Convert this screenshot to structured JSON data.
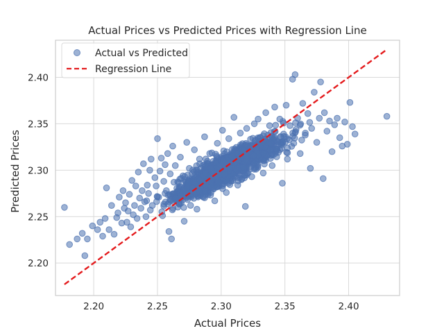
{
  "chart_data": {
    "type": "scatter",
    "title": "Actual Prices vs Predicted Prices with Regression Line",
    "xlabel": "Actual Prices",
    "ylabel": "Predicted Prices",
    "xlim": [
      2.17,
      2.44
    ],
    "ylim": [
      2.165,
      2.44
    ],
    "xticks": [
      2.2,
      2.25,
      2.3,
      2.35,
      2.4
    ],
    "yticks": [
      2.2,
      2.25,
      2.3,
      2.35,
      2.4
    ],
    "xtick_labels": [
      "2.20",
      "2.25",
      "2.30",
      "2.35",
      "2.40"
    ],
    "ytick_labels": [
      "2.20",
      "2.25",
      "2.30",
      "2.35",
      "2.40"
    ],
    "grid": true,
    "legend_position": "top-left",
    "series": [
      {
        "name": "Actual vs Predicted",
        "kind": "scatter",
        "color": "#4c72b0",
        "points": [
          [
            2.177,
            2.26
          ],
          [
            2.181,
            2.22
          ],
          [
            2.187,
            2.226
          ],
          [
            2.191,
            2.232
          ],
          [
            2.193,
            2.208
          ],
          [
            2.195,
            2.226
          ],
          [
            2.199,
            2.24
          ],
          [
            2.203,
            2.236
          ],
          [
            2.205,
            2.244
          ],
          [
            2.207,
            2.229
          ],
          [
            2.209,
            2.248
          ],
          [
            2.21,
            2.281
          ],
          [
            2.212,
            2.236
          ],
          [
            2.214,
            2.262
          ],
          [
            2.216,
            2.231
          ],
          [
            2.218,
            2.249
          ],
          [
            2.219,
            2.254
          ],
          [
            2.22,
            2.271
          ],
          [
            2.222,
            2.243
          ],
          [
            2.223,
            2.278
          ],
          [
            2.224,
            2.259
          ],
          [
            2.225,
            2.265
          ],
          [
            2.226,
            2.244
          ],
          [
            2.227,
            2.256
          ],
          [
            2.228,
            2.274
          ],
          [
            2.229,
            2.239
          ],
          [
            2.23,
            2.289
          ],
          [
            2.231,
            2.252
          ],
          [
            2.232,
            2.262
          ],
          [
            2.233,
            2.283
          ],
          [
            2.234,
            2.248
          ],
          [
            2.235,
            2.298
          ],
          [
            2.236,
            2.27
          ],
          [
            2.237,
            2.259
          ],
          [
            2.238,
            2.278
          ],
          [
            2.239,
            2.307
          ],
          [
            2.24,
            2.266
          ],
          [
            2.241,
            2.25
          ],
          [
            2.242,
            2.284
          ],
          [
            2.243,
            2.275
          ],
          [
            2.244,
            2.3
          ],
          [
            2.245,
            2.312
          ],
          [
            2.246,
            2.262
          ],
          [
            2.248,
            2.292
          ],
          [
            2.249,
            2.283
          ],
          [
            2.25,
            2.334
          ],
          [
            2.251,
            2.271
          ],
          [
            2.252,
            2.299
          ],
          [
            2.253,
            2.313
          ],
          [
            2.254,
            2.251
          ],
          [
            2.255,
            2.288
          ],
          [
            2.256,
            2.306
          ],
          [
            2.257,
            2.278
          ],
          [
            2.258,
            2.318
          ],
          [
            2.259,
            2.234
          ],
          [
            2.26,
            2.296
          ],
          [
            2.261,
            2.226
          ],
          [
            2.262,
            2.326
          ],
          [
            2.263,
            2.287
          ],
          [
            2.264,
            2.305
          ],
          [
            2.266,
            2.272
          ],
          [
            2.268,
            2.314
          ],
          [
            2.27,
            2.294
          ],
          [
            2.271,
            2.245
          ],
          [
            2.273,
            2.33
          ],
          [
            2.275,
            2.302
          ],
          [
            2.277,
            2.283
          ],
          [
            2.279,
            2.322
          ],
          [
            2.281,
            2.258
          ],
          [
            2.283,
            2.312
          ],
          [
            2.285,
            2.296
          ],
          [
            2.287,
            2.336
          ],
          [
            2.289,
            2.278
          ],
          [
            2.291,
            2.318
          ],
          [
            2.293,
            2.305
          ],
          [
            2.295,
            2.267
          ],
          [
            2.297,
            2.329
          ],
          [
            2.299,
            2.292
          ],
          [
            2.301,
            2.343
          ],
          [
            2.303,
            2.311
          ],
          [
            2.304,
            2.276
          ],
          [
            2.306,
            2.334
          ],
          [
            2.308,
            2.298
          ],
          [
            2.31,
            2.357
          ],
          [
            2.312,
            2.318
          ],
          [
            2.313,
            2.284
          ],
          [
            2.315,
            2.34
          ],
          [
            2.317,
            2.307
          ],
          [
            2.319,
            2.261
          ],
          [
            2.32,
            2.345
          ],
          [
            2.322,
            2.322
          ],
          [
            2.324,
            2.293
          ],
          [
            2.326,
            2.35
          ],
          [
            2.327,
            2.314
          ],
          [
            2.329,
            2.355
          ],
          [
            2.331,
            2.33
          ],
          [
            2.333,
            2.297
          ],
          [
            2.335,
            2.362
          ],
          [
            2.336,
            2.321
          ],
          [
            2.338,
            2.348
          ],
          [
            2.34,
            2.305
          ],
          [
            2.342,
            2.368
          ],
          [
            2.344,
            2.331
          ],
          [
            2.346,
            2.355
          ],
          [
            2.348,
            2.286
          ],
          [
            2.349,
            2.339
          ],
          [
            2.351,
            2.37
          ],
          [
            2.352,
            2.312
          ],
          [
            2.354,
            2.348
          ],
          [
            2.356,
            2.398
          ],
          [
            2.357,
            2.329
          ],
          [
            2.358,
            2.403
          ],
          [
            2.36,
            2.356
          ],
          [
            2.362,
            2.318
          ],
          [
            2.364,
            2.372
          ],
          [
            2.366,
            2.34
          ],
          [
            2.368,
            2.361
          ],
          [
            2.37,
            2.302
          ],
          [
            2.371,
            2.345
          ],
          [
            2.373,
            2.384
          ],
          [
            2.375,
            2.33
          ],
          [
            2.377,
            2.356
          ],
          [
            2.378,
            2.395
          ],
          [
            2.38,
            2.291
          ],
          [
            2.381,
            2.362
          ],
          [
            2.383,
            2.342
          ],
          [
            2.385,
            2.353
          ],
          [
            2.387,
            2.32
          ],
          [
            2.389,
            2.349
          ],
          [
            2.391,
            2.356
          ],
          [
            2.393,
            2.335
          ],
          [
            2.395,
            2.326
          ],
          [
            2.397,
            2.352
          ],
          [
            2.399,
            2.328
          ],
          [
            2.401,
            2.373
          ],
          [
            2.403,
            2.347
          ],
          [
            2.405,
            2.339
          ],
          [
            2.43,
            2.358
          ]
        ]
      },
      {
        "name": "Regression Line",
        "kind": "line",
        "color": "#e41a1c",
        "dashed": true,
        "x": [
          2.177,
          2.43
        ],
        "y": [
          2.177,
          2.43
        ]
      }
    ]
  }
}
